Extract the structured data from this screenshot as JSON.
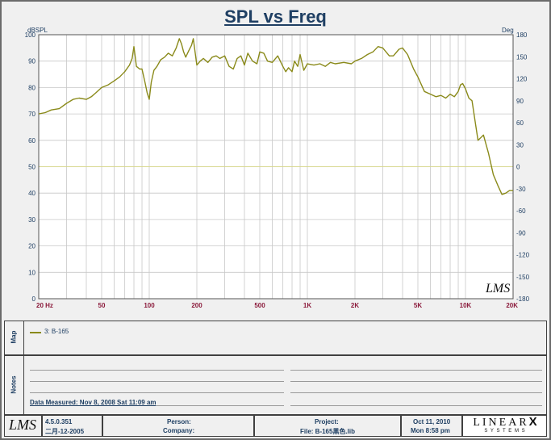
{
  "title": "SPL vs Freq",
  "chart_data": {
    "type": "line",
    "xscale": "log",
    "xlim": [
      20,
      20000
    ],
    "ylim": [
      0,
      100
    ],
    "y2lim": [
      -180,
      180
    ],
    "ylabel": "dBSPL",
    "y2label": "Deg",
    "xticks": [
      {
        "v": 20,
        "label": "20  Hz"
      },
      {
        "v": 50,
        "label": "50"
      },
      {
        "v": 100,
        "label": "100"
      },
      {
        "v": 200,
        "label": "200"
      },
      {
        "v": 500,
        "label": "500"
      },
      {
        "v": 1000,
        "label": "1K"
      },
      {
        "v": 2000,
        "label": "2K"
      },
      {
        "v": 5000,
        "label": "5K"
      },
      {
        "v": 10000,
        "label": "10K"
      },
      {
        "v": 20000,
        "label": "20K"
      }
    ],
    "yticks": [
      0,
      10,
      20,
      30,
      40,
      50,
      60,
      70,
      80,
      90,
      100
    ],
    "y2ticks": [
      -180,
      -150,
      -120,
      -90,
      -60,
      -30,
      0,
      30,
      60,
      90,
      120,
      150,
      180
    ],
    "watermark": "LMS",
    "colors": {
      "curve": "#8a8a1a",
      "zeroline": "#d8d890",
      "grid": "#c8c8c8",
      "axis_text": "#1f3f63",
      "tick_text": "#8b1a3b"
    },
    "series": [
      {
        "name": "3: B-165",
        "x": [
          20,
          22,
          24,
          27,
          30,
          33,
          36,
          40,
          43,
          46,
          50,
          55,
          60,
          65,
          70,
          75,
          78,
          80,
          83,
          87,
          90,
          94,
          97,
          100,
          103,
          107,
          112,
          118,
          125,
          132,
          140,
          148,
          155,
          160,
          165,
          170,
          178,
          185,
          190,
          195,
          200,
          210,
          220,
          235,
          250,
          265,
          280,
          300,
          320,
          340,
          360,
          380,
          400,
          420,
          450,
          480,
          500,
          530,
          560,
          600,
          650,
          700,
          730,
          760,
          800,
          830,
          870,
          900,
          950,
          1000,
          1100,
          1200,
          1300,
          1400,
          1500,
          1700,
          1900,
          2000,
          2200,
          2400,
          2600,
          2800,
          3000,
          3300,
          3500,
          3800,
          4000,
          4300,
          4700,
          5000,
          5500,
          6000,
          6500,
          7000,
          7500,
          8000,
          8500,
          9000,
          9300,
          9600,
          10000,
          10500,
          11000,
          12000,
          12500,
          13000,
          14000,
          15000,
          16000,
          17000,
          18000,
          19000,
          20000
        ],
        "y": [
          70,
          70.5,
          71.5,
          72,
          74,
          75.5,
          76,
          75.5,
          76.5,
          78,
          80,
          81,
          82.5,
          84,
          86,
          88.5,
          91,
          95.5,
          88,
          87,
          87,
          82,
          78,
          75.5,
          82,
          86.5,
          88,
          90.5,
          91.5,
          93,
          92,
          95,
          98.5,
          96.5,
          93.5,
          91.5,
          94,
          96,
          98.5,
          93.5,
          88.5,
          90,
          91,
          89.5,
          91.5,
          92,
          91,
          92,
          88,
          87,
          91,
          92,
          88.5,
          93,
          90,
          89,
          93.5,
          93,
          90,
          89.5,
          92,
          88,
          86,
          87.5,
          86,
          90,
          88,
          92.5,
          86.5,
          89,
          88.5,
          89,
          88,
          89.5,
          89,
          89.5,
          89,
          90,
          91,
          92.5,
          93.5,
          95.5,
          95,
          92,
          92,
          94.5,
          95,
          92.5,
          87,
          84,
          78.5,
          77.5,
          76.5,
          77,
          76,
          77.5,
          76.5,
          78.5,
          81,
          81.5,
          79.5,
          76,
          75,
          60,
          61,
          62,
          55,
          47,
          43,
          39.5,
          40,
          41,
          41
        ]
      }
    ]
  },
  "map": {
    "label": "Map",
    "legend_entry": "3: B-165"
  },
  "notes": {
    "label": "Notes",
    "data_measured": "Data Measured: Nov  8, 2008  Sat 11:09 am"
  },
  "footer": {
    "logo": "LMS",
    "version": "4.5.0.351",
    "version_date": "二月-12-2005",
    "person_label": "Person:",
    "company_label": "Company:",
    "project_label": "Project:",
    "file_label": "File: B-165黑色.lib",
    "date": "Oct 11, 2010",
    "time": "Mon  8:58 pm",
    "brand_top": "LINEAR",
    "brand_x": "X",
    "brand_bottom": "S Y S T E M S"
  }
}
